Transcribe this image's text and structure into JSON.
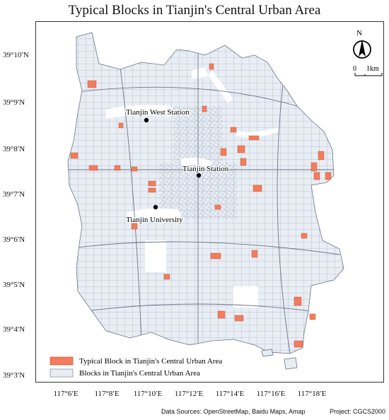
{
  "title": "Typical Blocks in Tianjin's Central Urban Area",
  "latitudes": [
    "39°10′N",
    "39°9′N",
    "39°8′N",
    "39°7′N",
    "39°6′N",
    "39°5′N",
    "39°4′N",
    "39°3′N"
  ],
  "longitudes": [
    "117°6′E",
    "117°8′E",
    "117°10′E",
    "117°12′E",
    "117°14′E",
    "117°16′E",
    "117°18′E"
  ],
  "places": [
    {
      "name": "Tianjin West Station"
    },
    {
      "name": "Tianjin Station"
    },
    {
      "name": "Tianjin University"
    }
  ],
  "north_arrow": {
    "label": "N"
  },
  "scale_bar": {
    "start": "0",
    "end": "1km"
  },
  "legend": {
    "typical": {
      "label": "Typical Block in Tianjin's Central Urban Area",
      "color": "#f47c5b"
    },
    "blocks": {
      "label": "Blocks in Tianjin's Central Urban Area",
      "color": "#e9eef5"
    }
  },
  "footer": {
    "sources": "Data Sources: OpenStreetMap, Baidu Maps, Amap",
    "projection": "Project: CGCS2000"
  }
}
